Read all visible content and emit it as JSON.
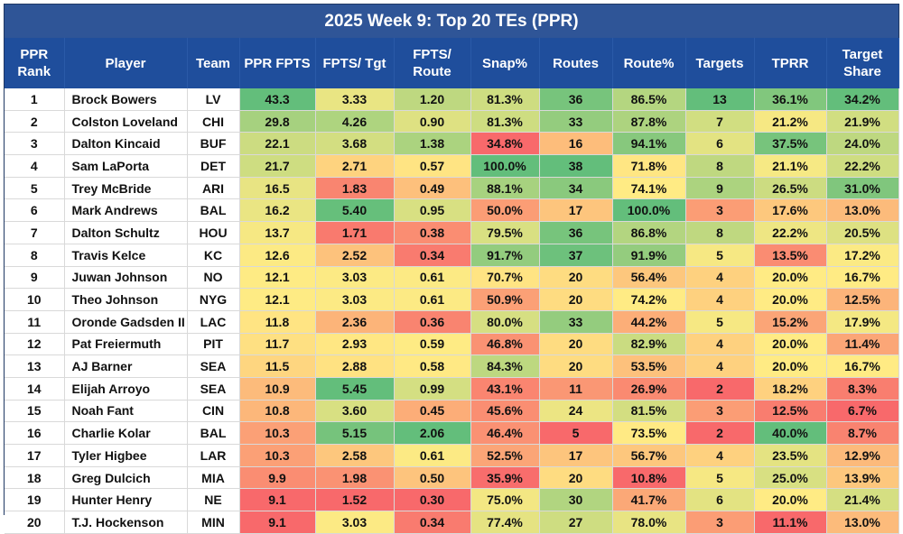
{
  "chart_data": {
    "type": "table",
    "title": "2025 Week 9: Top 20 TEs (PPR)",
    "columns": [
      {
        "key": "rank",
        "label": "PPR Rank"
      },
      {
        "key": "player",
        "label": "Player"
      },
      {
        "key": "team",
        "label": "Team"
      },
      {
        "key": "ppr_fpts",
        "label": "PPR FPTS"
      },
      {
        "key": "fpts_tgt",
        "label": "FPTS/ Tgt"
      },
      {
        "key": "fpts_route",
        "label": "FPTS/ Route"
      },
      {
        "key": "snap_pct",
        "label": "Snap%"
      },
      {
        "key": "routes",
        "label": "Routes"
      },
      {
        "key": "route_pct",
        "label": "Route%"
      },
      {
        "key": "targets",
        "label": "Targets"
      },
      {
        "key": "tprr",
        "label": "TPRR"
      },
      {
        "key": "target_share",
        "label": "Target Share"
      }
    ],
    "rows": [
      {
        "rank": "1",
        "player": "Brock Bowers",
        "team": "LV",
        "ppr_fpts": "43.3",
        "fpts_tgt": "3.33",
        "fpts_route": "1.20",
        "snap_pct": "81.3%",
        "routes": "36",
        "route_pct": "86.5%",
        "targets": "13",
        "tprr": "36.1%",
        "target_share": "34.2%"
      },
      {
        "rank": "2",
        "player": "Colston Loveland",
        "team": "CHI",
        "ppr_fpts": "29.8",
        "fpts_tgt": "4.26",
        "fpts_route": "0.90",
        "snap_pct": "81.3%",
        "routes": "33",
        "route_pct": "87.8%",
        "targets": "7",
        "tprr": "21.2%",
        "target_share": "21.9%"
      },
      {
        "rank": "3",
        "player": "Dalton Kincaid",
        "team": "BUF",
        "ppr_fpts": "22.1",
        "fpts_tgt": "3.68",
        "fpts_route": "1.38",
        "snap_pct": "34.8%",
        "routes": "16",
        "route_pct": "94.1%",
        "targets": "6",
        "tprr": "37.5%",
        "target_share": "24.0%"
      },
      {
        "rank": "4",
        "player": "Sam LaPorta",
        "team": "DET",
        "ppr_fpts": "21.7",
        "fpts_tgt": "2.71",
        "fpts_route": "0.57",
        "snap_pct": "100.0%",
        "routes": "38",
        "route_pct": "71.8%",
        "targets": "8",
        "tprr": "21.1%",
        "target_share": "22.2%"
      },
      {
        "rank": "5",
        "player": "Trey McBride",
        "team": "ARI",
        "ppr_fpts": "16.5",
        "fpts_tgt": "1.83",
        "fpts_route": "0.49",
        "snap_pct": "88.1%",
        "routes": "34",
        "route_pct": "74.1%",
        "targets": "9",
        "tprr": "26.5%",
        "target_share": "31.0%"
      },
      {
        "rank": "6",
        "player": "Mark Andrews",
        "team": "BAL",
        "ppr_fpts": "16.2",
        "fpts_tgt": "5.40",
        "fpts_route": "0.95",
        "snap_pct": "50.0%",
        "routes": "17",
        "route_pct": "100.0%",
        "targets": "3",
        "tprr": "17.6%",
        "target_share": "13.0%"
      },
      {
        "rank": "7",
        "player": "Dalton Schultz",
        "team": "HOU",
        "ppr_fpts": "13.7",
        "fpts_tgt": "1.71",
        "fpts_route": "0.38",
        "snap_pct": "79.5%",
        "routes": "36",
        "route_pct": "86.8%",
        "targets": "8",
        "tprr": "22.2%",
        "target_share": "20.5%"
      },
      {
        "rank": "8",
        "player": "Travis Kelce",
        "team": "KC",
        "ppr_fpts": "12.6",
        "fpts_tgt": "2.52",
        "fpts_route": "0.34",
        "snap_pct": "91.7%",
        "routes": "37",
        "route_pct": "91.9%",
        "targets": "5",
        "tprr": "13.5%",
        "target_share": "17.2%"
      },
      {
        "rank": "9",
        "player": "Juwan Johnson",
        "team": "NO",
        "ppr_fpts": "12.1",
        "fpts_tgt": "3.03",
        "fpts_route": "0.61",
        "snap_pct": "70.7%",
        "routes": "20",
        "route_pct": "56.4%",
        "targets": "4",
        "tprr": "20.0%",
        "target_share": "16.7%"
      },
      {
        "rank": "10",
        "player": "Theo Johnson",
        "team": "NYG",
        "ppr_fpts": "12.1",
        "fpts_tgt": "3.03",
        "fpts_route": "0.61",
        "snap_pct": "50.9%",
        "routes": "20",
        "route_pct": "74.2%",
        "targets": "4",
        "tprr": "20.0%",
        "target_share": "12.5%"
      },
      {
        "rank": "11",
        "player": "Oronde Gadsden II",
        "team": "LAC",
        "ppr_fpts": "11.8",
        "fpts_tgt": "2.36",
        "fpts_route": "0.36",
        "snap_pct": "80.0%",
        "routes": "33",
        "route_pct": "44.2%",
        "targets": "5",
        "tprr": "15.2%",
        "target_share": "17.9%"
      },
      {
        "rank": "12",
        "player": "Pat Freiermuth",
        "team": "PIT",
        "ppr_fpts": "11.7",
        "fpts_tgt": "2.93",
        "fpts_route": "0.59",
        "snap_pct": "46.8%",
        "routes": "20",
        "route_pct": "82.9%",
        "targets": "4",
        "tprr": "20.0%",
        "target_share": "11.4%"
      },
      {
        "rank": "13",
        "player": "AJ Barner",
        "team": "SEA",
        "ppr_fpts": "11.5",
        "fpts_tgt": "2.88",
        "fpts_route": "0.58",
        "snap_pct": "84.3%",
        "routes": "20",
        "route_pct": "53.5%",
        "targets": "4",
        "tprr": "20.0%",
        "target_share": "16.7%"
      },
      {
        "rank": "14",
        "player": "Elijah Arroyo",
        "team": "SEA",
        "ppr_fpts": "10.9",
        "fpts_tgt": "5.45",
        "fpts_route": "0.99",
        "snap_pct": "43.1%",
        "routes": "11",
        "route_pct": "26.9%",
        "targets": "2",
        "tprr": "18.2%",
        "target_share": "8.3%"
      },
      {
        "rank": "15",
        "player": "Noah Fant",
        "team": "CIN",
        "ppr_fpts": "10.8",
        "fpts_tgt": "3.60",
        "fpts_route": "0.45",
        "snap_pct": "45.6%",
        "routes": "24",
        "route_pct": "81.5%",
        "targets": "3",
        "tprr": "12.5%",
        "target_share": "6.7%"
      },
      {
        "rank": "16",
        "player": "Charlie Kolar",
        "team": "BAL",
        "ppr_fpts": "10.3",
        "fpts_tgt": "5.15",
        "fpts_route": "2.06",
        "snap_pct": "46.4%",
        "routes": "5",
        "route_pct": "73.5%",
        "targets": "2",
        "tprr": "40.0%",
        "target_share": "8.7%"
      },
      {
        "rank": "17",
        "player": "Tyler Higbee",
        "team": "LAR",
        "ppr_fpts": "10.3",
        "fpts_tgt": "2.58",
        "fpts_route": "0.61",
        "snap_pct": "52.5%",
        "routes": "17",
        "route_pct": "56.7%",
        "targets": "4",
        "tprr": "23.5%",
        "target_share": "12.9%"
      },
      {
        "rank": "18",
        "player": "Greg Dulcich",
        "team": "MIA",
        "ppr_fpts": "9.9",
        "fpts_tgt": "1.98",
        "fpts_route": "0.50",
        "snap_pct": "35.9%",
        "routes": "20",
        "route_pct": "10.8%",
        "targets": "5",
        "tprr": "25.0%",
        "target_share": "13.9%"
      },
      {
        "rank": "19",
        "player": "Hunter Henry",
        "team": "NE",
        "ppr_fpts": "9.1",
        "fpts_tgt": "1.52",
        "fpts_route": "0.30",
        "snap_pct": "75.0%",
        "routes": "30",
        "route_pct": "41.7%",
        "targets": "6",
        "tprr": "20.0%",
        "target_share": "21.4%"
      },
      {
        "rank": "20",
        "player": "T.J. Hockenson",
        "team": "MIN",
        "ppr_fpts": "9.1",
        "fpts_tgt": "3.03",
        "fpts_route": "0.34",
        "snap_pct": "77.4%",
        "routes": "27",
        "route_pct": "78.0%",
        "targets": "3",
        "tprr": "11.1%",
        "target_share": "13.0%"
      }
    ]
  },
  "colors": {
    "title_bg": "#2f5597",
    "header_bg": "#1f4e9c",
    "scale_low": "#f8696b",
    "scale_mid": "#ffeb84",
    "scale_high": "#63be7b"
  }
}
